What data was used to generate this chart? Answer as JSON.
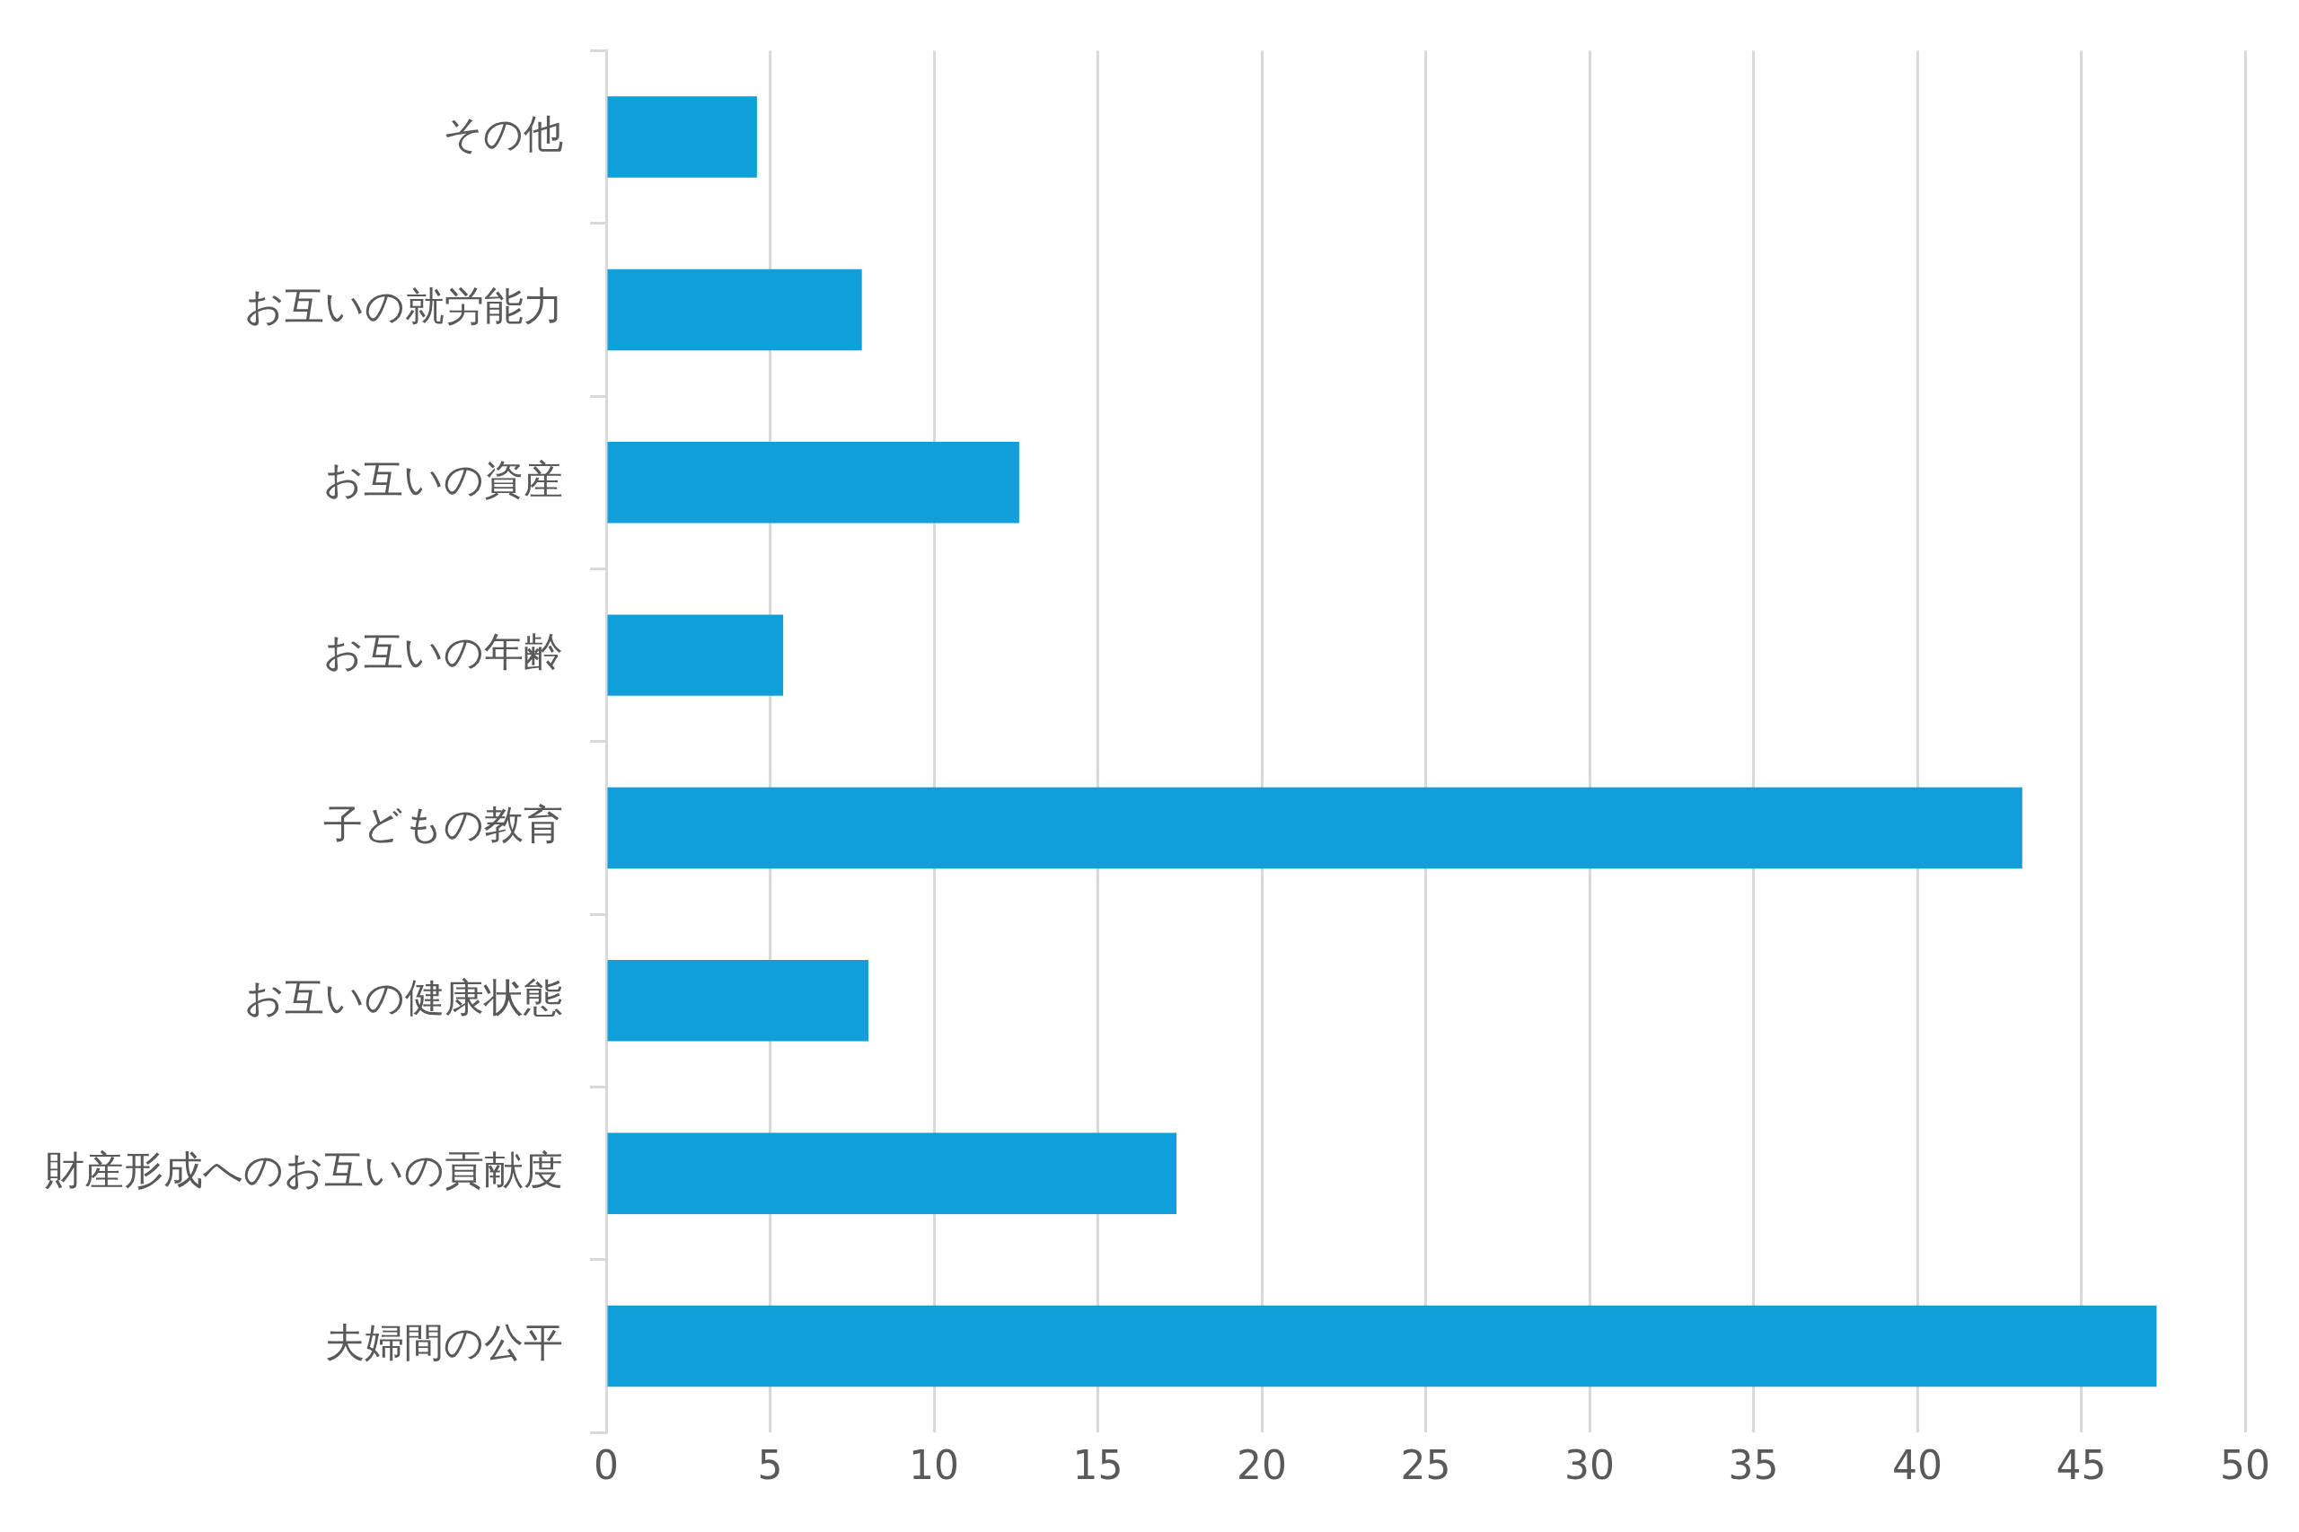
{
  "chart_data": {
    "type": "bar",
    "orientation": "horizontal",
    "categories": [
      "その他",
      "お互いの就労能力",
      "お互いの資産",
      "お互いの年齢",
      "子どもの教育",
      "お互いの健康状態",
      "財産形成へのお互いの貢献度",
      "夫婦間の公平"
    ],
    "values": [
      4.6,
      7.8,
      12.6,
      5.4,
      43.2,
      8.0,
      17.4,
      47.3
    ],
    "color": "#109fd8",
    "xlim": [
      0,
      50
    ],
    "xticks": [
      0,
      5,
      10,
      15,
      20,
      25,
      30,
      35,
      40,
      45,
      50
    ],
    "grid": "x",
    "legend": false
  }
}
